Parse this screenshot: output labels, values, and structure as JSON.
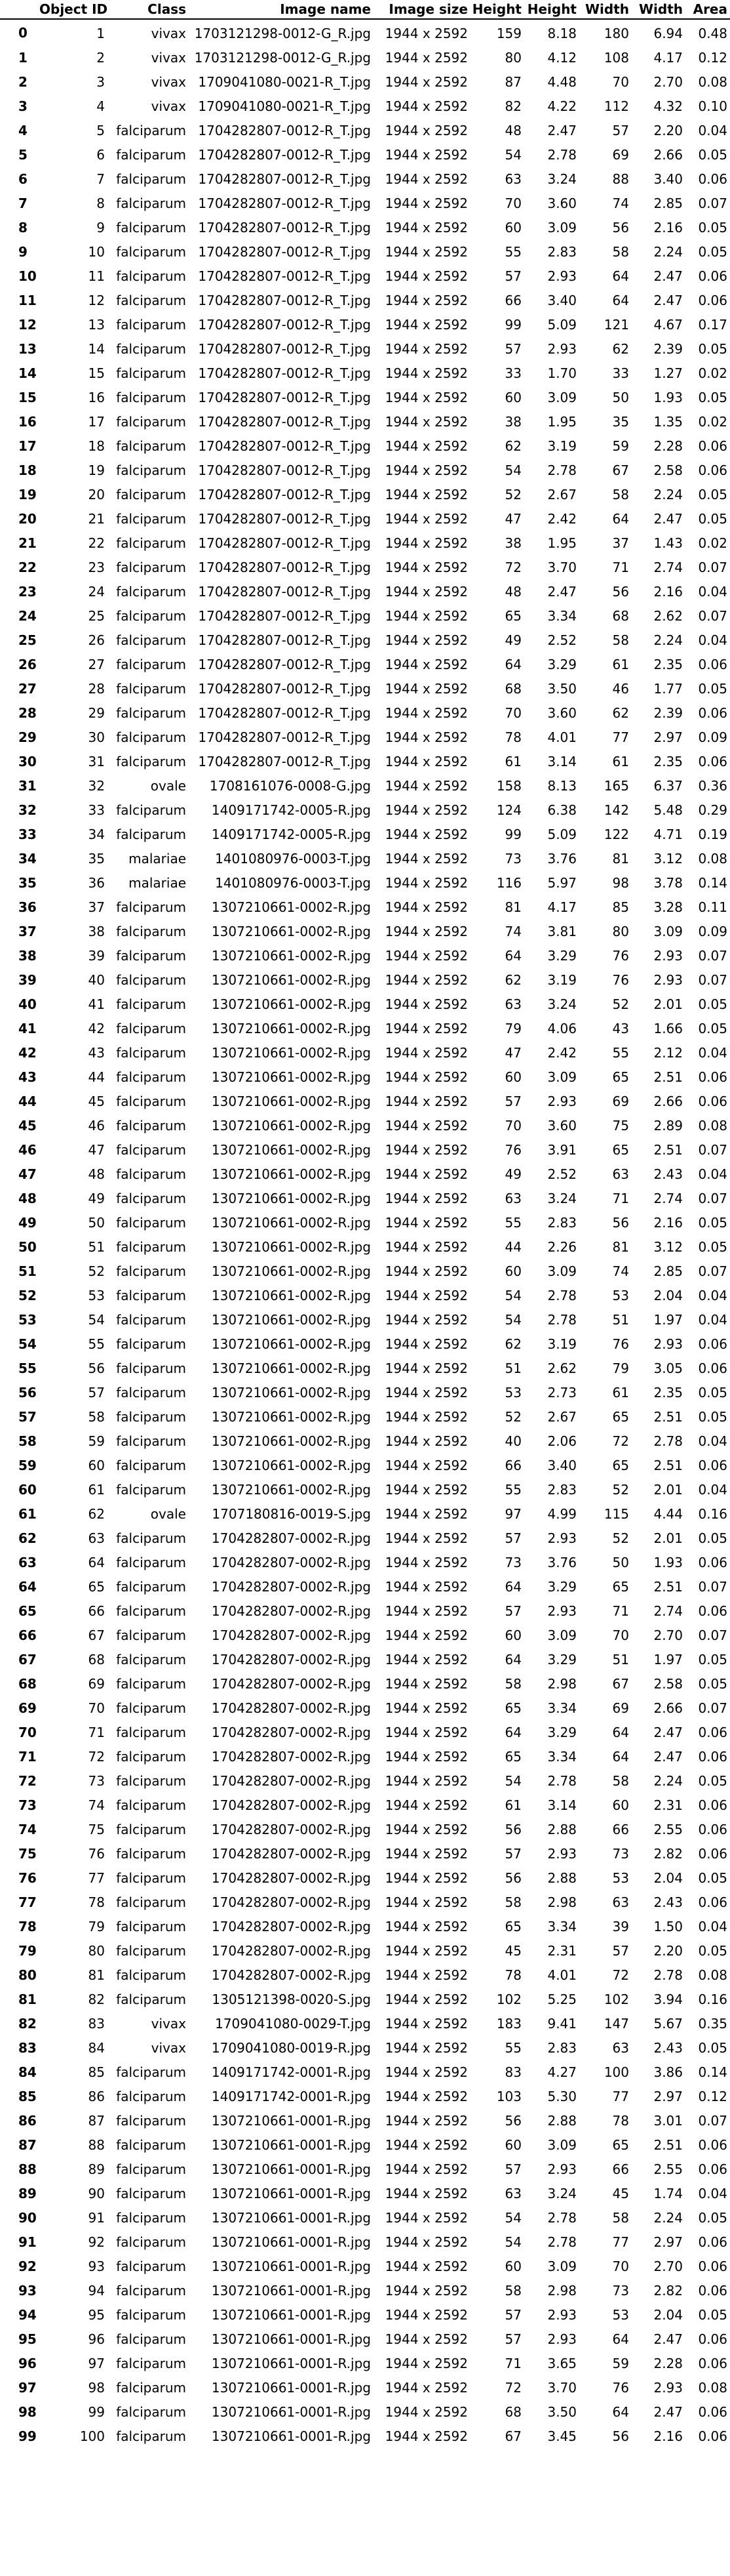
{
  "columns": [
    "",
    "Object ID",
    "Class",
    "Image name",
    "Image size",
    "Height",
    "Height",
    "Width",
    "Width",
    "Area"
  ],
  "rows": [
    [
      "0",
      "1",
      "vivax",
      "1703121298-0012-G_R.jpg",
      "1944 x 2592",
      "159",
      "8.18",
      "180",
      "6.94",
      "0.48"
    ],
    [
      "1",
      "2",
      "vivax",
      "1703121298-0012-G_R.jpg",
      "1944 x 2592",
      "80",
      "4.12",
      "108",
      "4.17",
      "0.12"
    ],
    [
      "2",
      "3",
      "vivax",
      "1709041080-0021-R_T.jpg",
      "1944 x 2592",
      "87",
      "4.48",
      "70",
      "2.70",
      "0.08"
    ],
    [
      "3",
      "4",
      "vivax",
      "1709041080-0021-R_T.jpg",
      "1944 x 2592",
      "82",
      "4.22",
      "112",
      "4.32",
      "0.10"
    ],
    [
      "4",
      "5",
      "falciparum",
      "1704282807-0012-R_T.jpg",
      "1944 x 2592",
      "48",
      "2.47",
      "57",
      "2.20",
      "0.04"
    ],
    [
      "5",
      "6",
      "falciparum",
      "1704282807-0012-R_T.jpg",
      "1944 x 2592",
      "54",
      "2.78",
      "69",
      "2.66",
      "0.05"
    ],
    [
      "6",
      "7",
      "falciparum",
      "1704282807-0012-R_T.jpg",
      "1944 x 2592",
      "63",
      "3.24",
      "88",
      "3.40",
      "0.06"
    ],
    [
      "7",
      "8",
      "falciparum",
      "1704282807-0012-R_T.jpg",
      "1944 x 2592",
      "70",
      "3.60",
      "74",
      "2.85",
      "0.07"
    ],
    [
      "8",
      "9",
      "falciparum",
      "1704282807-0012-R_T.jpg",
      "1944 x 2592",
      "60",
      "3.09",
      "56",
      "2.16",
      "0.05"
    ],
    [
      "9",
      "10",
      "falciparum",
      "1704282807-0012-R_T.jpg",
      "1944 x 2592",
      "55",
      "2.83",
      "58",
      "2.24",
      "0.05"
    ],
    [
      "10",
      "11",
      "falciparum",
      "1704282807-0012-R_T.jpg",
      "1944 x 2592",
      "57",
      "2.93",
      "64",
      "2.47",
      "0.06"
    ],
    [
      "11",
      "12",
      "falciparum",
      "1704282807-0012-R_T.jpg",
      "1944 x 2592",
      "66",
      "3.40",
      "64",
      "2.47",
      "0.06"
    ],
    [
      "12",
      "13",
      "falciparum",
      "1704282807-0012-R_T.jpg",
      "1944 x 2592",
      "99",
      "5.09",
      "121",
      "4.67",
      "0.17"
    ],
    [
      "13",
      "14",
      "falciparum",
      "1704282807-0012-R_T.jpg",
      "1944 x 2592",
      "57",
      "2.93",
      "62",
      "2.39",
      "0.05"
    ],
    [
      "14",
      "15",
      "falciparum",
      "1704282807-0012-R_T.jpg",
      "1944 x 2592",
      "33",
      "1.70",
      "33",
      "1.27",
      "0.02"
    ],
    [
      "15",
      "16",
      "falciparum",
      "1704282807-0012-R_T.jpg",
      "1944 x 2592",
      "60",
      "3.09",
      "50",
      "1.93",
      "0.05"
    ],
    [
      "16",
      "17",
      "falciparum",
      "1704282807-0012-R_T.jpg",
      "1944 x 2592",
      "38",
      "1.95",
      "35",
      "1.35",
      "0.02"
    ],
    [
      "17",
      "18",
      "falciparum",
      "1704282807-0012-R_T.jpg",
      "1944 x 2592",
      "62",
      "3.19",
      "59",
      "2.28",
      "0.06"
    ],
    [
      "18",
      "19",
      "falciparum",
      "1704282807-0012-R_T.jpg",
      "1944 x 2592",
      "54",
      "2.78",
      "67",
      "2.58",
      "0.06"
    ],
    [
      "19",
      "20",
      "falciparum",
      "1704282807-0012-R_T.jpg",
      "1944 x 2592",
      "52",
      "2.67",
      "58",
      "2.24",
      "0.05"
    ],
    [
      "20",
      "21",
      "falciparum",
      "1704282807-0012-R_T.jpg",
      "1944 x 2592",
      "47",
      "2.42",
      "64",
      "2.47",
      "0.05"
    ],
    [
      "21",
      "22",
      "falciparum",
      "1704282807-0012-R_T.jpg",
      "1944 x 2592",
      "38",
      "1.95",
      "37",
      "1.43",
      "0.02"
    ],
    [
      "22",
      "23",
      "falciparum",
      "1704282807-0012-R_T.jpg",
      "1944 x 2592",
      "72",
      "3.70",
      "71",
      "2.74",
      "0.07"
    ],
    [
      "23",
      "24",
      "falciparum",
      "1704282807-0012-R_T.jpg",
      "1944 x 2592",
      "48",
      "2.47",
      "56",
      "2.16",
      "0.04"
    ],
    [
      "24",
      "25",
      "falciparum",
      "1704282807-0012-R_T.jpg",
      "1944 x 2592",
      "65",
      "3.34",
      "68",
      "2.62",
      "0.07"
    ],
    [
      "25",
      "26",
      "falciparum",
      "1704282807-0012-R_T.jpg",
      "1944 x 2592",
      "49",
      "2.52",
      "58",
      "2.24",
      "0.04"
    ],
    [
      "26",
      "27",
      "falciparum",
      "1704282807-0012-R_T.jpg",
      "1944 x 2592",
      "64",
      "3.29",
      "61",
      "2.35",
      "0.06"
    ],
    [
      "27",
      "28",
      "falciparum",
      "1704282807-0012-R_T.jpg",
      "1944 x 2592",
      "68",
      "3.50",
      "46",
      "1.77",
      "0.05"
    ],
    [
      "28",
      "29",
      "falciparum",
      "1704282807-0012-R_T.jpg",
      "1944 x 2592",
      "70",
      "3.60",
      "62",
      "2.39",
      "0.06"
    ],
    [
      "29",
      "30",
      "falciparum",
      "1704282807-0012-R_T.jpg",
      "1944 x 2592",
      "78",
      "4.01",
      "77",
      "2.97",
      "0.09"
    ],
    [
      "30",
      "31",
      "falciparum",
      "1704282807-0012-R_T.jpg",
      "1944 x 2592",
      "61",
      "3.14",
      "61",
      "2.35",
      "0.06"
    ],
    [
      "31",
      "32",
      "ovale",
      "1708161076-0008-G.jpg",
      "1944 x 2592",
      "158",
      "8.13",
      "165",
      "6.37",
      "0.36"
    ],
    [
      "32",
      "33",
      "falciparum",
      "1409171742-0005-R.jpg",
      "1944 x 2592",
      "124",
      "6.38",
      "142",
      "5.48",
      "0.29"
    ],
    [
      "33",
      "34",
      "falciparum",
      "1409171742-0005-R.jpg",
      "1944 x 2592",
      "99",
      "5.09",
      "122",
      "4.71",
      "0.19"
    ],
    [
      "34",
      "35",
      "malariae",
      "1401080976-0003-T.jpg",
      "1944 x 2592",
      "73",
      "3.76",
      "81",
      "3.12",
      "0.08"
    ],
    [
      "35",
      "36",
      "malariae",
      "1401080976-0003-T.jpg",
      "1944 x 2592",
      "116",
      "5.97",
      "98",
      "3.78",
      "0.14"
    ],
    [
      "36",
      "37",
      "falciparum",
      "1307210661-0002-R.jpg",
      "1944 x 2592",
      "81",
      "4.17",
      "85",
      "3.28",
      "0.11"
    ],
    [
      "37",
      "38",
      "falciparum",
      "1307210661-0002-R.jpg",
      "1944 x 2592",
      "74",
      "3.81",
      "80",
      "3.09",
      "0.09"
    ],
    [
      "38",
      "39",
      "falciparum",
      "1307210661-0002-R.jpg",
      "1944 x 2592",
      "64",
      "3.29",
      "76",
      "2.93",
      "0.07"
    ],
    [
      "39",
      "40",
      "falciparum",
      "1307210661-0002-R.jpg",
      "1944 x 2592",
      "62",
      "3.19",
      "76",
      "2.93",
      "0.07"
    ],
    [
      "40",
      "41",
      "falciparum",
      "1307210661-0002-R.jpg",
      "1944 x 2592",
      "63",
      "3.24",
      "52",
      "2.01",
      "0.05"
    ],
    [
      "41",
      "42",
      "falciparum",
      "1307210661-0002-R.jpg",
      "1944 x 2592",
      "79",
      "4.06",
      "43",
      "1.66",
      "0.05"
    ],
    [
      "42",
      "43",
      "falciparum",
      "1307210661-0002-R.jpg",
      "1944 x 2592",
      "47",
      "2.42",
      "55",
      "2.12",
      "0.04"
    ],
    [
      "43",
      "44",
      "falciparum",
      "1307210661-0002-R.jpg",
      "1944 x 2592",
      "60",
      "3.09",
      "65",
      "2.51",
      "0.06"
    ],
    [
      "44",
      "45",
      "falciparum",
      "1307210661-0002-R.jpg",
      "1944 x 2592",
      "57",
      "2.93",
      "69",
      "2.66",
      "0.06"
    ],
    [
      "45",
      "46",
      "falciparum",
      "1307210661-0002-R.jpg",
      "1944 x 2592",
      "70",
      "3.60",
      "75",
      "2.89",
      "0.08"
    ],
    [
      "46",
      "47",
      "falciparum",
      "1307210661-0002-R.jpg",
      "1944 x 2592",
      "76",
      "3.91",
      "65",
      "2.51",
      "0.07"
    ],
    [
      "47",
      "48",
      "falciparum",
      "1307210661-0002-R.jpg",
      "1944 x 2592",
      "49",
      "2.52",
      "63",
      "2.43",
      "0.04"
    ],
    [
      "48",
      "49",
      "falciparum",
      "1307210661-0002-R.jpg",
      "1944 x 2592",
      "63",
      "3.24",
      "71",
      "2.74",
      "0.07"
    ],
    [
      "49",
      "50",
      "falciparum",
      "1307210661-0002-R.jpg",
      "1944 x 2592",
      "55",
      "2.83",
      "56",
      "2.16",
      "0.05"
    ],
    [
      "50",
      "51",
      "falciparum",
      "1307210661-0002-R.jpg",
      "1944 x 2592",
      "44",
      "2.26",
      "81",
      "3.12",
      "0.05"
    ],
    [
      "51",
      "52",
      "falciparum",
      "1307210661-0002-R.jpg",
      "1944 x 2592",
      "60",
      "3.09",
      "74",
      "2.85",
      "0.07"
    ],
    [
      "52",
      "53",
      "falciparum",
      "1307210661-0002-R.jpg",
      "1944 x 2592",
      "54",
      "2.78",
      "53",
      "2.04",
      "0.04"
    ],
    [
      "53",
      "54",
      "falciparum",
      "1307210661-0002-R.jpg",
      "1944 x 2592",
      "54",
      "2.78",
      "51",
      "1.97",
      "0.04"
    ],
    [
      "54",
      "55",
      "falciparum",
      "1307210661-0002-R.jpg",
      "1944 x 2592",
      "62",
      "3.19",
      "76",
      "2.93",
      "0.06"
    ],
    [
      "55",
      "56",
      "falciparum",
      "1307210661-0002-R.jpg",
      "1944 x 2592",
      "51",
      "2.62",
      "79",
      "3.05",
      "0.06"
    ],
    [
      "56",
      "57",
      "falciparum",
      "1307210661-0002-R.jpg",
      "1944 x 2592",
      "53",
      "2.73",
      "61",
      "2.35",
      "0.05"
    ],
    [
      "57",
      "58",
      "falciparum",
      "1307210661-0002-R.jpg",
      "1944 x 2592",
      "52",
      "2.67",
      "65",
      "2.51",
      "0.05"
    ],
    [
      "58",
      "59",
      "falciparum",
      "1307210661-0002-R.jpg",
      "1944 x 2592",
      "40",
      "2.06",
      "72",
      "2.78",
      "0.04"
    ],
    [
      "59",
      "60",
      "falciparum",
      "1307210661-0002-R.jpg",
      "1944 x 2592",
      "66",
      "3.40",
      "65",
      "2.51",
      "0.06"
    ],
    [
      "60",
      "61",
      "falciparum",
      "1307210661-0002-R.jpg",
      "1944 x 2592",
      "55",
      "2.83",
      "52",
      "2.01",
      "0.04"
    ],
    [
      "61",
      "62",
      "ovale",
      "1707180816-0019-S.jpg",
      "1944 x 2592",
      "97",
      "4.99",
      "115",
      "4.44",
      "0.16"
    ],
    [
      "62",
      "63",
      "falciparum",
      "1704282807-0002-R.jpg",
      "1944 x 2592",
      "57",
      "2.93",
      "52",
      "2.01",
      "0.05"
    ],
    [
      "63",
      "64",
      "falciparum",
      "1704282807-0002-R.jpg",
      "1944 x 2592",
      "73",
      "3.76",
      "50",
      "1.93",
      "0.06"
    ],
    [
      "64",
      "65",
      "falciparum",
      "1704282807-0002-R.jpg",
      "1944 x 2592",
      "64",
      "3.29",
      "65",
      "2.51",
      "0.07"
    ],
    [
      "65",
      "66",
      "falciparum",
      "1704282807-0002-R.jpg",
      "1944 x 2592",
      "57",
      "2.93",
      "71",
      "2.74",
      "0.06"
    ],
    [
      "66",
      "67",
      "falciparum",
      "1704282807-0002-R.jpg",
      "1944 x 2592",
      "60",
      "3.09",
      "70",
      "2.70",
      "0.07"
    ],
    [
      "67",
      "68",
      "falciparum",
      "1704282807-0002-R.jpg",
      "1944 x 2592",
      "64",
      "3.29",
      "51",
      "1.97",
      "0.05"
    ],
    [
      "68",
      "69",
      "falciparum",
      "1704282807-0002-R.jpg",
      "1944 x 2592",
      "58",
      "2.98",
      "67",
      "2.58",
      "0.05"
    ],
    [
      "69",
      "70",
      "falciparum",
      "1704282807-0002-R.jpg",
      "1944 x 2592",
      "65",
      "3.34",
      "69",
      "2.66",
      "0.07"
    ],
    [
      "70",
      "71",
      "falciparum",
      "1704282807-0002-R.jpg",
      "1944 x 2592",
      "64",
      "3.29",
      "64",
      "2.47",
      "0.06"
    ],
    [
      "71",
      "72",
      "falciparum",
      "1704282807-0002-R.jpg",
      "1944 x 2592",
      "65",
      "3.34",
      "64",
      "2.47",
      "0.06"
    ],
    [
      "72",
      "73",
      "falciparum",
      "1704282807-0002-R.jpg",
      "1944 x 2592",
      "54",
      "2.78",
      "58",
      "2.24",
      "0.05"
    ],
    [
      "73",
      "74",
      "falciparum",
      "1704282807-0002-R.jpg",
      "1944 x 2592",
      "61",
      "3.14",
      "60",
      "2.31",
      "0.06"
    ],
    [
      "74",
      "75",
      "falciparum",
      "1704282807-0002-R.jpg",
      "1944 x 2592",
      "56",
      "2.88",
      "66",
      "2.55",
      "0.06"
    ],
    [
      "75",
      "76",
      "falciparum",
      "1704282807-0002-R.jpg",
      "1944 x 2592",
      "57",
      "2.93",
      "73",
      "2.82",
      "0.06"
    ],
    [
      "76",
      "77",
      "falciparum",
      "1704282807-0002-R.jpg",
      "1944 x 2592",
      "56",
      "2.88",
      "53",
      "2.04",
      "0.05"
    ],
    [
      "77",
      "78",
      "falciparum",
      "1704282807-0002-R.jpg",
      "1944 x 2592",
      "58",
      "2.98",
      "63",
      "2.43",
      "0.06"
    ],
    [
      "78",
      "79",
      "falciparum",
      "1704282807-0002-R.jpg",
      "1944 x 2592",
      "65",
      "3.34",
      "39",
      "1.50",
      "0.04"
    ],
    [
      "79",
      "80",
      "falciparum",
      "1704282807-0002-R.jpg",
      "1944 x 2592",
      "45",
      "2.31",
      "57",
      "2.20",
      "0.05"
    ],
    [
      "80",
      "81",
      "falciparum",
      "1704282807-0002-R.jpg",
      "1944 x 2592",
      "78",
      "4.01",
      "72",
      "2.78",
      "0.08"
    ],
    [
      "81",
      "82",
      "falciparum",
      "1305121398-0020-S.jpg",
      "1944 x 2592",
      "102",
      "5.25",
      "102",
      "3.94",
      "0.16"
    ],
    [
      "82",
      "83",
      "vivax",
      "1709041080-0029-T.jpg",
      "1944 x 2592",
      "183",
      "9.41",
      "147",
      "5.67",
      "0.35"
    ],
    [
      "83",
      "84",
      "vivax",
      "1709041080-0019-R.jpg",
      "1944 x 2592",
      "55",
      "2.83",
      "63",
      "2.43",
      "0.05"
    ],
    [
      "84",
      "85",
      "falciparum",
      "1409171742-0001-R.jpg",
      "1944 x 2592",
      "83",
      "4.27",
      "100",
      "3.86",
      "0.14"
    ],
    [
      "85",
      "86",
      "falciparum",
      "1409171742-0001-R.jpg",
      "1944 x 2592",
      "103",
      "5.30",
      "77",
      "2.97",
      "0.12"
    ],
    [
      "86",
      "87",
      "falciparum",
      "1307210661-0001-R.jpg",
      "1944 x 2592",
      "56",
      "2.88",
      "78",
      "3.01",
      "0.07"
    ],
    [
      "87",
      "88",
      "falciparum",
      "1307210661-0001-R.jpg",
      "1944 x 2592",
      "60",
      "3.09",
      "65",
      "2.51",
      "0.06"
    ],
    [
      "88",
      "89",
      "falciparum",
      "1307210661-0001-R.jpg",
      "1944 x 2592",
      "57",
      "2.93",
      "66",
      "2.55",
      "0.06"
    ],
    [
      "89",
      "90",
      "falciparum",
      "1307210661-0001-R.jpg",
      "1944 x 2592",
      "63",
      "3.24",
      "45",
      "1.74",
      "0.04"
    ],
    [
      "90",
      "91",
      "falciparum",
      "1307210661-0001-R.jpg",
      "1944 x 2592",
      "54",
      "2.78",
      "58",
      "2.24",
      "0.05"
    ],
    [
      "91",
      "92",
      "falciparum",
      "1307210661-0001-R.jpg",
      "1944 x 2592",
      "54",
      "2.78",
      "77",
      "2.97",
      "0.06"
    ],
    [
      "92",
      "93",
      "falciparum",
      "1307210661-0001-R.jpg",
      "1944 x 2592",
      "60",
      "3.09",
      "70",
      "2.70",
      "0.06"
    ],
    [
      "93",
      "94",
      "falciparum",
      "1307210661-0001-R.jpg",
      "1944 x 2592",
      "58",
      "2.98",
      "73",
      "2.82",
      "0.06"
    ],
    [
      "94",
      "95",
      "falciparum",
      "1307210661-0001-R.jpg",
      "1944 x 2592",
      "57",
      "2.93",
      "53",
      "2.04",
      "0.05"
    ],
    [
      "95",
      "96",
      "falciparum",
      "1307210661-0001-R.jpg",
      "1944 x 2592",
      "57",
      "2.93",
      "64",
      "2.47",
      "0.06"
    ],
    [
      "96",
      "97",
      "falciparum",
      "1307210661-0001-R.jpg",
      "1944 x 2592",
      "71",
      "3.65",
      "59",
      "2.28",
      "0.06"
    ],
    [
      "97",
      "98",
      "falciparum",
      "1307210661-0001-R.jpg",
      "1944 x 2592",
      "72",
      "3.70",
      "76",
      "2.93",
      "0.08"
    ],
    [
      "98",
      "99",
      "falciparum",
      "1307210661-0001-R.jpg",
      "1944 x 2592",
      "68",
      "3.50",
      "64",
      "2.47",
      "0.06"
    ],
    [
      "99",
      "100",
      "falciparum",
      "1307210661-0001-R.jpg",
      "1944 x 2592",
      "67",
      "3.45",
      "56",
      "2.16",
      "0.06"
    ]
  ]
}
